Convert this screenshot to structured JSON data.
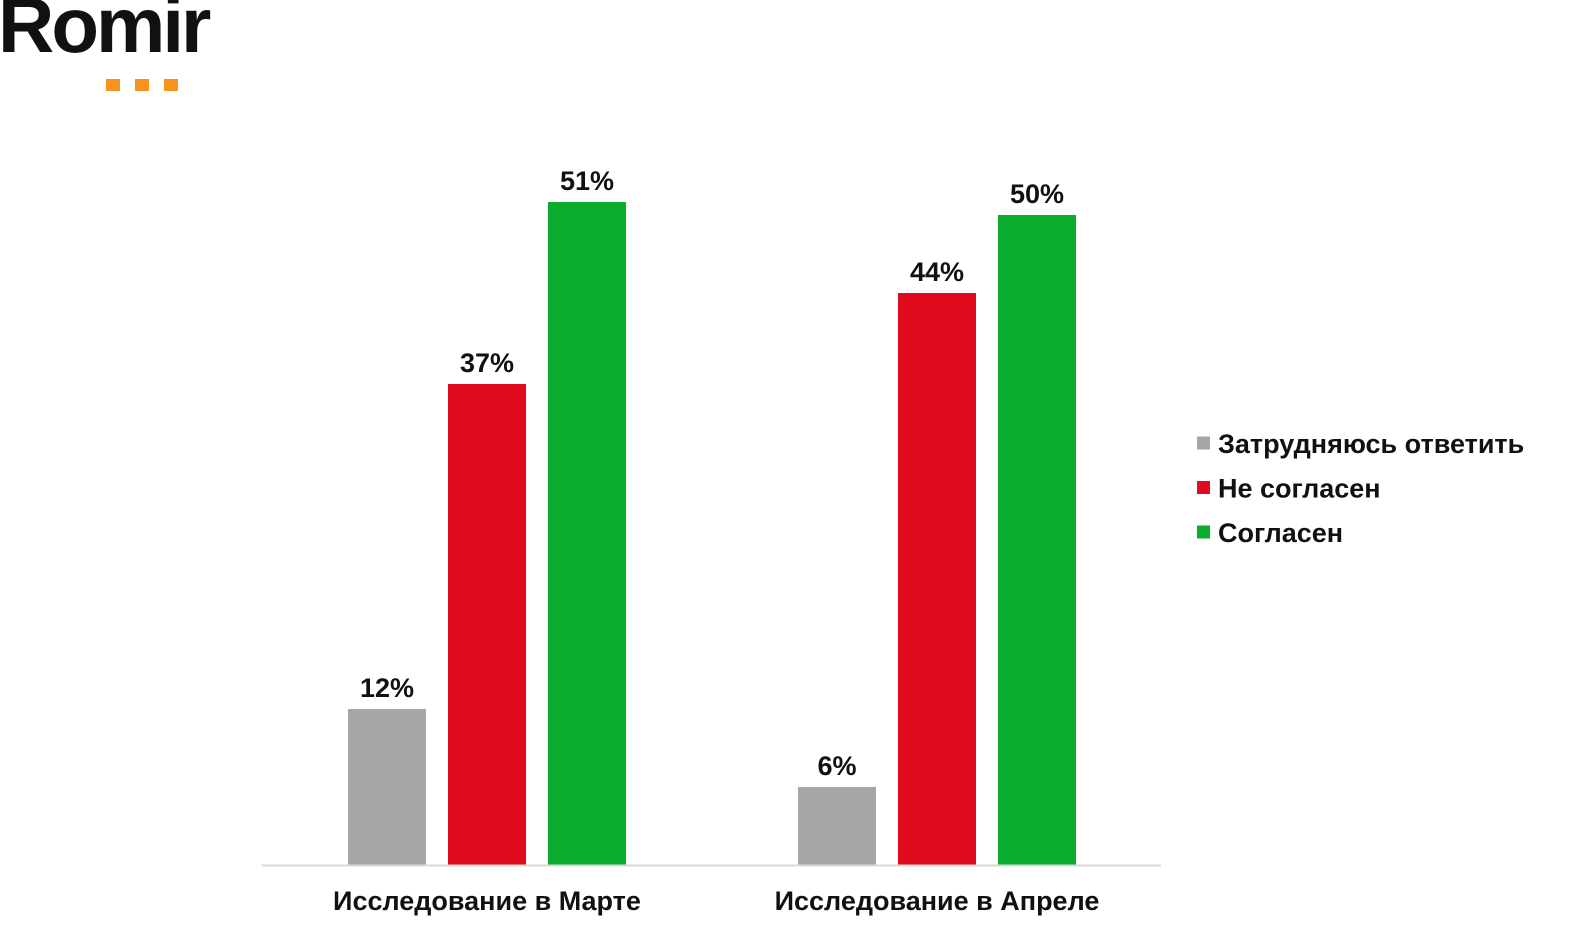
{
  "logo": {
    "text": "Romir",
    "text_color": "#111111",
    "accent_color": "#F7931E"
  },
  "chart_data": {
    "type": "bar",
    "categories": [
      "Исследование в Марте",
      "Исследование в Апреле"
    ],
    "series": [
      {
        "name": "Затрудняюсь ответить",
        "color": "#A6A6A6",
        "values": [
          12,
          6
        ]
      },
      {
        "name": "Не согласен",
        "color": "#E00B1C",
        "values": [
          37,
          44
        ]
      },
      {
        "name": "Согласен",
        "color": "#0AAD2E",
        "values": [
          51,
          50
        ]
      }
    ],
    "value_suffix": "%",
    "ylim": [
      0,
      60
    ],
    "grid": false,
    "axis_line_color": "#D9D9D9",
    "legend_position": "right"
  }
}
